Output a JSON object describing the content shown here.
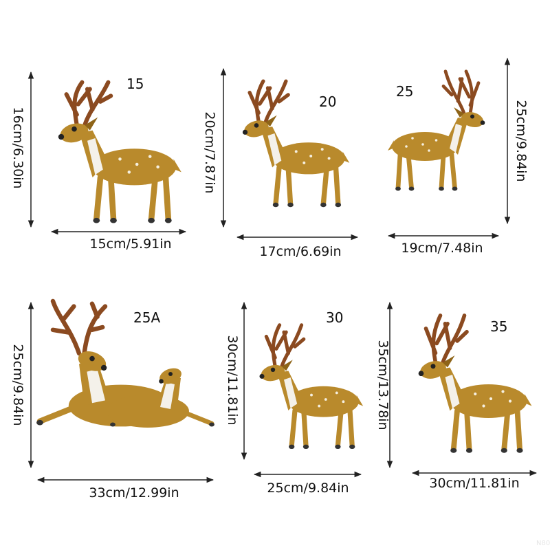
{
  "colors": {
    "body": "#b98a2c",
    "body_dark": "#8e6418",
    "antler": "#8b4a20",
    "chest": "#f4f1ea",
    "hoof": "#333333",
    "arrow": "#222222"
  },
  "panels": [
    {
      "size_label": "15",
      "height_label": "16cm/6.30in",
      "width_label": "15cm/5.91in",
      "pose": "standing"
    },
    {
      "size_label": "20",
      "height_label": "20cm/7.87in",
      "width_label": "17cm/6.69in",
      "pose": "standing"
    },
    {
      "size_label": "25",
      "height_label": "25cm/9.84in",
      "width_label": "19cm/7.48in",
      "pose": "standing-right"
    },
    {
      "size_label": "25A",
      "height_label": "25cm/9.84in",
      "width_label": "33cm/12.99in",
      "pose": "lying-pair"
    },
    {
      "size_label": "30",
      "height_label": "30cm/11.81in",
      "width_label": "25cm/9.84in",
      "pose": "standing"
    },
    {
      "size_label": "35",
      "height_label": "35cm/13.78in",
      "width_label": "30cm/11.81in",
      "pose": "standing"
    }
  ],
  "watermark": "N808"
}
